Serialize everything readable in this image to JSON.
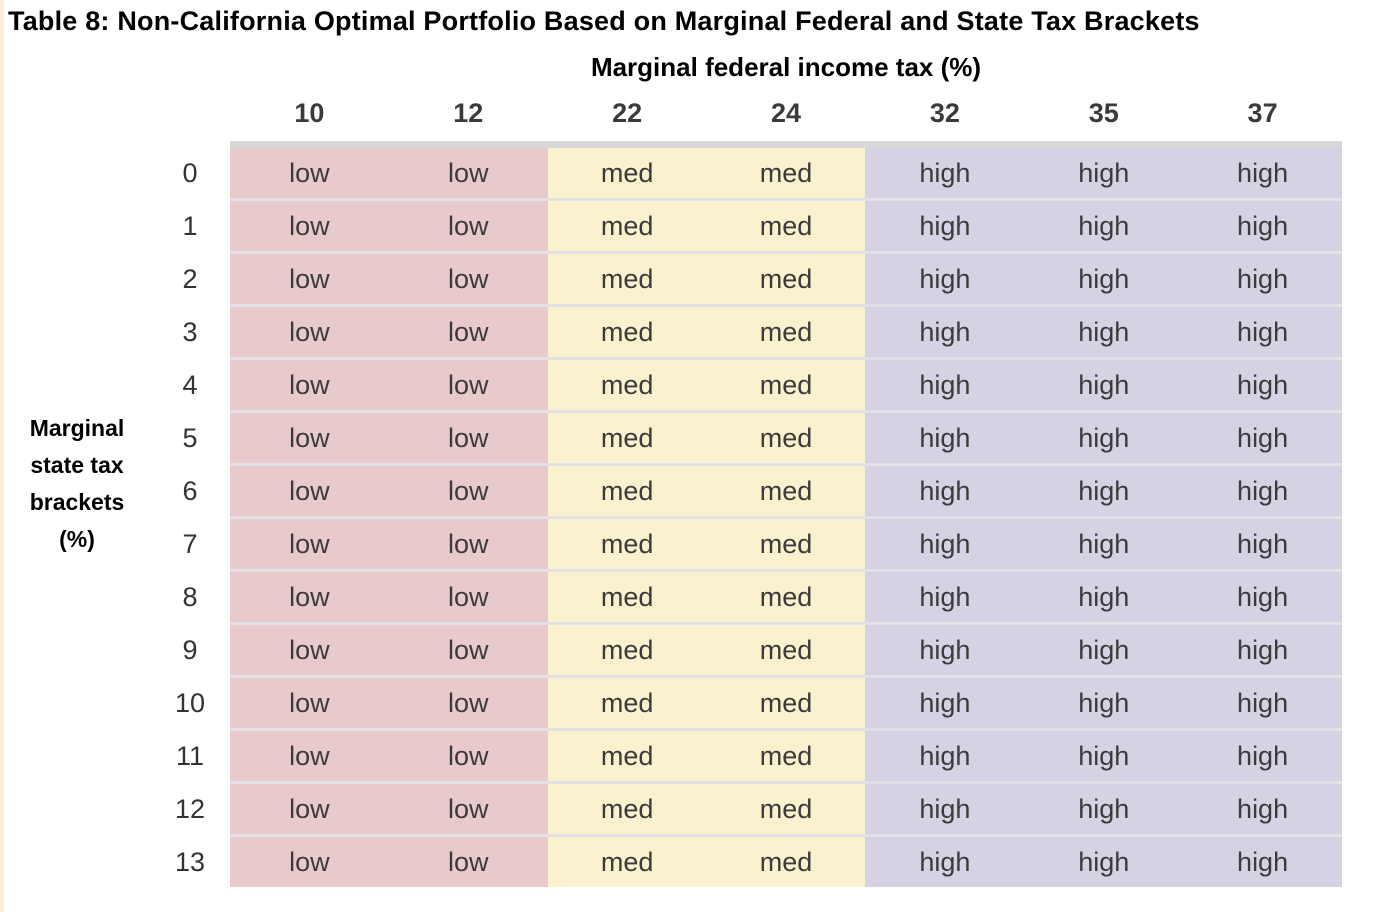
{
  "title": "Table 8: Non-California Optimal Portfolio Based on Marginal Federal and State Tax Brackets",
  "table": {
    "column_group_label": "Marginal federal income tax (%)",
    "row_group_label_lines": [
      "Marginal",
      "state tax",
      "brackets",
      "(%)"
    ],
    "columns": [
      "10",
      "12",
      "22",
      "24",
      "32",
      "35",
      "37"
    ],
    "rows": [
      {
        "label": "0",
        "cells": [
          "low",
          "low",
          "med",
          "med",
          "high",
          "high",
          "high"
        ]
      },
      {
        "label": "1",
        "cells": [
          "low",
          "low",
          "med",
          "med",
          "high",
          "high",
          "high"
        ]
      },
      {
        "label": "2",
        "cells": [
          "low",
          "low",
          "med",
          "med",
          "high",
          "high",
          "high"
        ]
      },
      {
        "label": "3",
        "cells": [
          "low",
          "low",
          "med",
          "med",
          "high",
          "high",
          "high"
        ]
      },
      {
        "label": "4",
        "cells": [
          "low",
          "low",
          "med",
          "med",
          "high",
          "high",
          "high"
        ]
      },
      {
        "label": "5",
        "cells": [
          "low",
          "low",
          "med",
          "med",
          "high",
          "high",
          "high"
        ]
      },
      {
        "label": "6",
        "cells": [
          "low",
          "low",
          "med",
          "med",
          "high",
          "high",
          "high"
        ]
      },
      {
        "label": "7",
        "cells": [
          "low",
          "low",
          "med",
          "med",
          "high",
          "high",
          "high"
        ]
      },
      {
        "label": "8",
        "cells": [
          "low",
          "low",
          "med",
          "med",
          "high",
          "high",
          "high"
        ]
      },
      {
        "label": "9",
        "cells": [
          "low",
          "low",
          "med",
          "med",
          "high",
          "high",
          "high"
        ]
      },
      {
        "label": "10",
        "cells": [
          "low",
          "low",
          "med",
          "med",
          "high",
          "high",
          "high"
        ]
      },
      {
        "label": "11",
        "cells": [
          "low",
          "low",
          "med",
          "med",
          "high",
          "high",
          "high"
        ]
      },
      {
        "label": "12",
        "cells": [
          "low",
          "low",
          "med",
          "med",
          "high",
          "high",
          "high"
        ]
      },
      {
        "label": "13",
        "cells": [
          "low",
          "low",
          "med",
          "med",
          "high",
          "high",
          "high"
        ]
      }
    ]
  },
  "colors": {
    "low": "#e8cacd",
    "med": "#faf2cf",
    "high": "#d6d2e4",
    "divider": "#e2e2e6",
    "top_border": "#d8d8d8",
    "cell_text": "#3b3b3b"
  }
}
